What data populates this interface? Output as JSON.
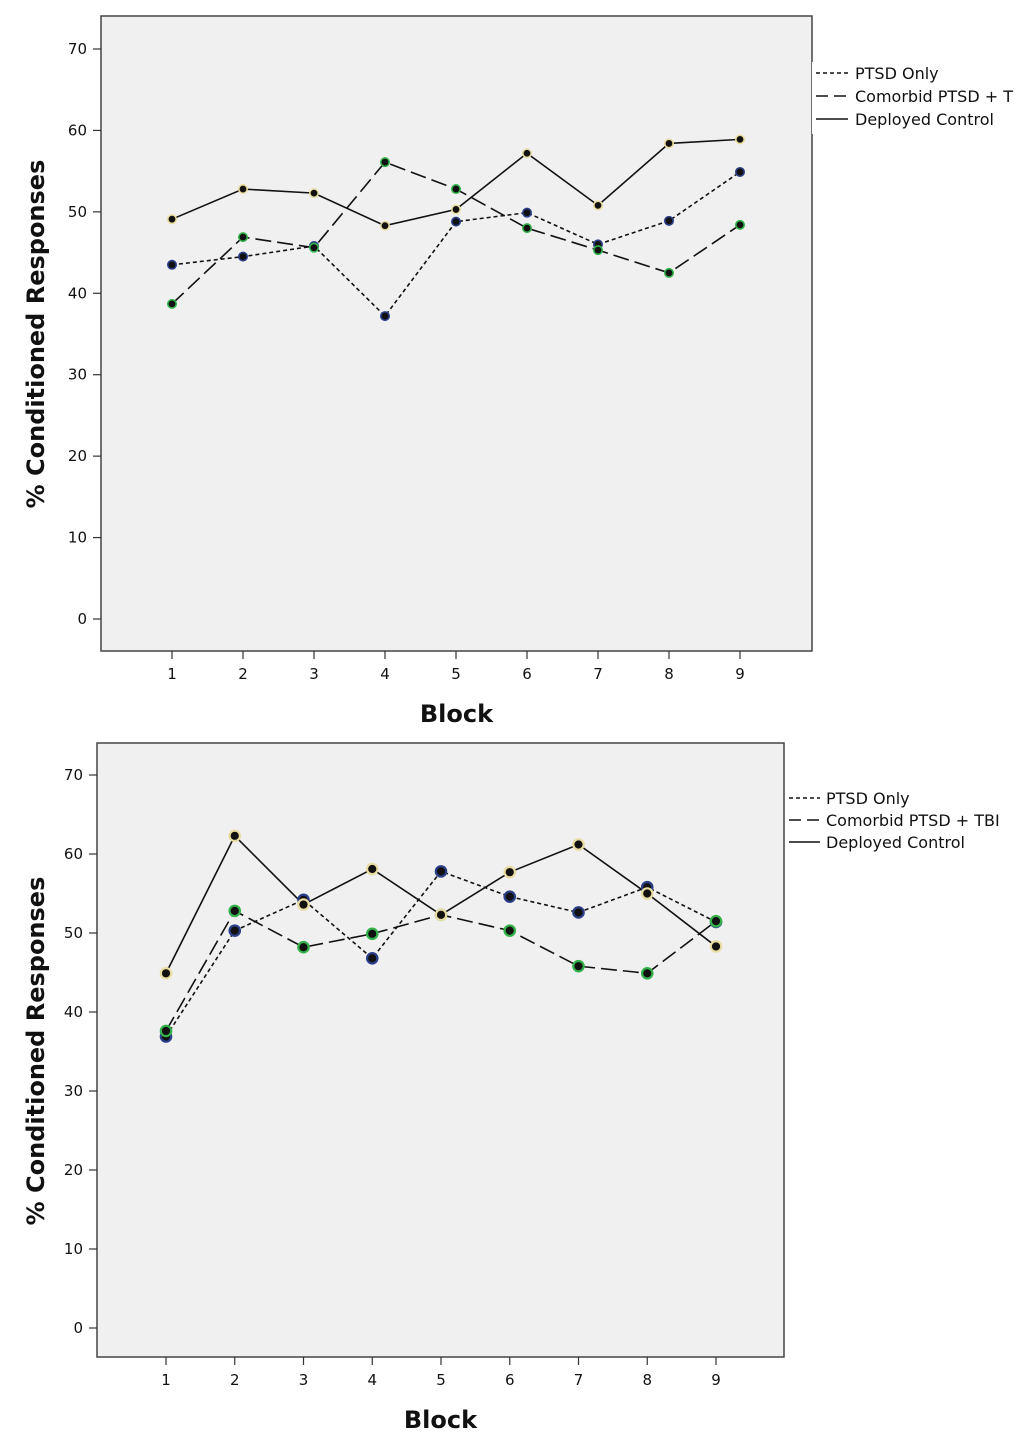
{
  "chart_data": [
    {
      "type": "line",
      "title": "",
      "xlabel": "Block",
      "ylabel": "% Conditioned Responses",
      "categories": [
        "1",
        "2",
        "3",
        "4",
        "5",
        "6",
        "7",
        "8",
        "9"
      ],
      "yticks": [
        "0",
        "10",
        "20",
        "30",
        "40",
        "50",
        "60",
        "70"
      ],
      "ylim": [
        -3.8,
        74
      ],
      "grid": false,
      "legend_position": "right",
      "legend_labels": [
        "PTSD Only",
        "Comorbid PTSD + T",
        "Deployed Control"
      ],
      "series": [
        {
          "name": "PTSD Only",
          "line_style": "dotted",
          "marker_color": "#2b3f88",
          "values": [
            43.5,
            44.5,
            45.8,
            37.2,
            48.8,
            49.9,
            46.0,
            48.9,
            54.9
          ]
        },
        {
          "name": "Comorbid PTSD + T",
          "line_style": "long-dash",
          "marker_color": "#33b24a",
          "values": [
            38.7,
            46.9,
            45.6,
            56.1,
            52.8,
            48.0,
            45.3,
            42.5,
            48.4
          ]
        },
        {
          "name": "Deployed Control",
          "line_style": "solid",
          "marker_color": "#e8dca0",
          "values": [
            49.1,
            52.8,
            52.3,
            48.3,
            50.3,
            57.2,
            50.8,
            58.4,
            58.9
          ]
        }
      ]
    },
    {
      "type": "line",
      "title": "",
      "xlabel": "Block",
      "ylabel": "% Conditioned Responses",
      "categories": [
        "1",
        "2",
        "3",
        "4",
        "5",
        "6",
        "7",
        "8",
        "9"
      ],
      "yticks": [
        "0",
        "10",
        "20",
        "30",
        "40",
        "50",
        "60",
        "70"
      ],
      "ylim": [
        -3.8,
        74
      ],
      "grid": false,
      "legend_position": "right",
      "legend_labels": [
        "PTSD Only",
        "Comorbid PTSD + TBI",
        "Deployed Control"
      ],
      "series": [
        {
          "name": "PTSD Only",
          "line_style": "dotted",
          "marker_color": "#2b3f88",
          "values": [
            36.9,
            50.3,
            54.2,
            46.8,
            57.8,
            54.6,
            52.6,
            55.8,
            51.4
          ]
        },
        {
          "name": "Comorbid PTSD + TBI",
          "line_style": "long-dash",
          "marker_color": "#33b24a",
          "values": [
            37.6,
            52.8,
            48.2,
            49.9,
            52.3,
            50.3,
            45.8,
            44.9,
            51.5
          ]
        },
        {
          "name": "Deployed Control",
          "line_style": "solid",
          "marker_color": "#e8dca0",
          "values": [
            44.9,
            62.3,
            53.6,
            58.1,
            52.3,
            57.7,
            61.2,
            55.0,
            48.3
          ]
        }
      ]
    }
  ]
}
